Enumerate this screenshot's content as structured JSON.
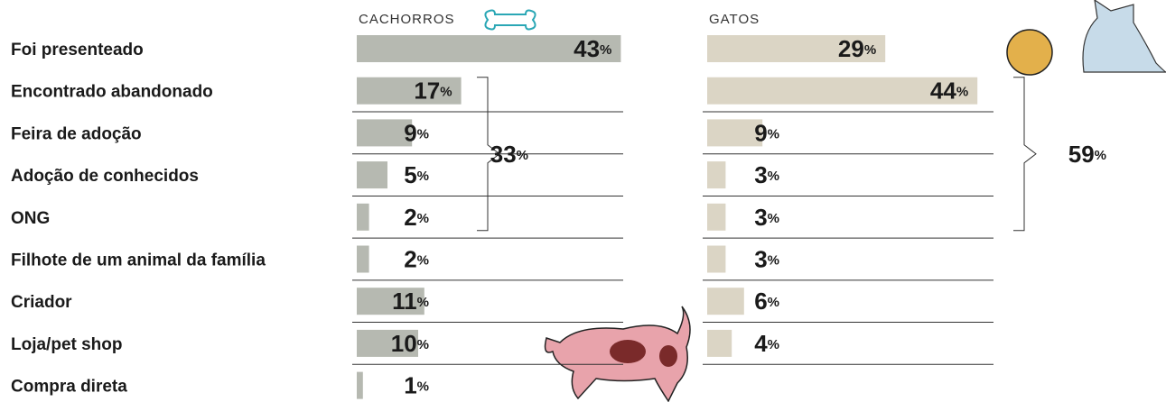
{
  "chart_data": {
    "type": "bar",
    "categories": [
      "Foi presenteado",
      "Encontrado abandonado",
      "Feira de adoção",
      "Adoção de conhecidos",
      "ONG",
      "Filhote de um animal da família",
      "Criador",
      "Loja/pet shop",
      "Compra direta"
    ],
    "series": [
      {
        "name": "CACHORROS",
        "color": "#b6b9b1",
        "values": [
          43,
          17,
          9,
          5,
          2,
          2,
          11,
          10,
          1
        ],
        "value_labels": [
          "43%",
          "17%",
          "9%",
          "5%",
          "2%",
          "2%",
          "11%",
          "10%",
          "1%"
        ]
      },
      {
        "name": "GATOS",
        "color": "#dbd5c5",
        "values": [
          29,
          44,
          9,
          3,
          3,
          3,
          6,
          4,
          null
        ],
        "value_labels": [
          "29%",
          "44%",
          "9%",
          "3%",
          "3%",
          "3%",
          "6%",
          "4%",
          null
        ]
      }
    ],
    "annotations": [
      "33%",
      "59%"
    ]
  }
}
